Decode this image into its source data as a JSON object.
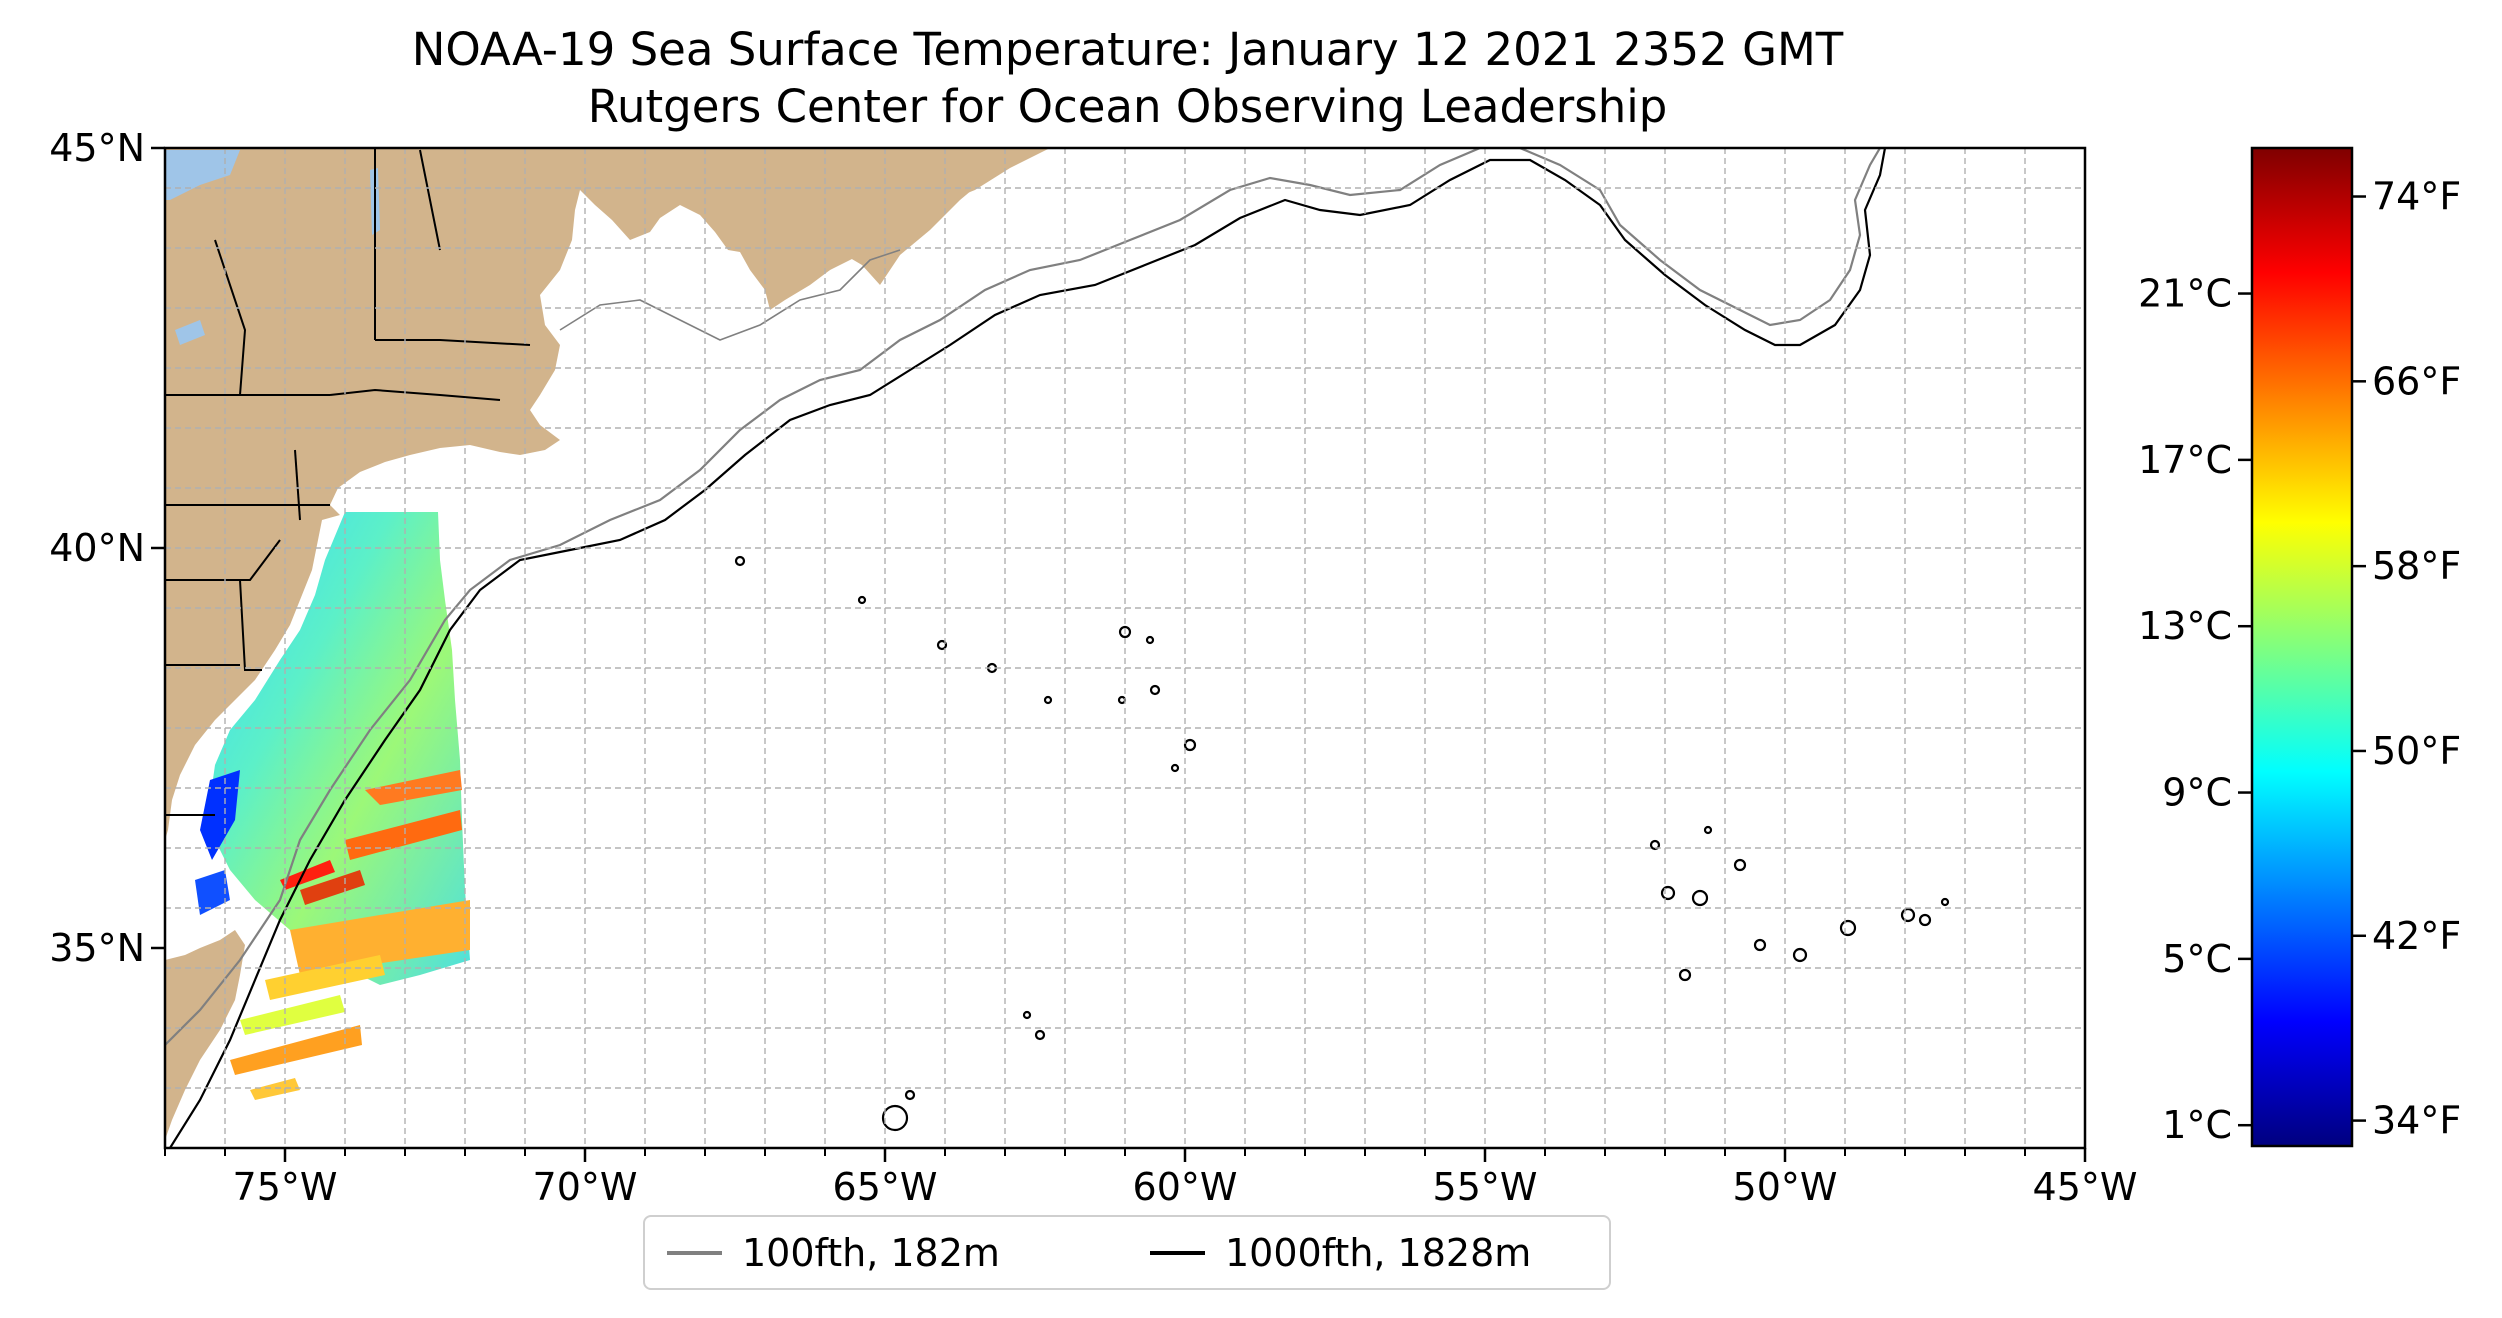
{
  "title": {
    "line1": "NOAA-19 Sea Surface Temperature: January 12 2021 2352 GMT",
    "line2": "Rutgers Center for Ocean Observing Leadership"
  },
  "map": {
    "lon_range": [
      -77,
      -45
    ],
    "lat_range": [
      32.5,
      45
    ],
    "x_ticks": [
      {
        "lon": -75,
        "label": "75°W"
      },
      {
        "lon": -70,
        "label": "70°W"
      },
      {
        "lon": -65,
        "label": "65°W"
      },
      {
        "lon": -60,
        "label": "60°W"
      },
      {
        "lon": -55,
        "label": "55°W"
      },
      {
        "lon": -50,
        "label": "50°W"
      },
      {
        "lon": -45,
        "label": "45°W"
      }
    ],
    "y_ticks": [
      {
        "lat": 45,
        "label": "45°N"
      },
      {
        "lat": 40,
        "label": "40°N"
      },
      {
        "lat": 35,
        "label": "35°N"
      }
    ],
    "grid": "dashed",
    "land_color": "#d2b48c",
    "lake_color": "#9fc5e8",
    "gridline_color": "#b0b0b0"
  },
  "colorbar": {
    "colormap": "jet",
    "range_celsius": [
      0.5,
      24.5
    ],
    "celsius_ticks": [
      {
        "value": 1,
        "label": "1°C"
      },
      {
        "value": 5,
        "label": "5°C"
      },
      {
        "value": 9,
        "label": "9°C"
      },
      {
        "value": 13,
        "label": "13°C"
      },
      {
        "value": 17,
        "label": "17°C"
      },
      {
        "value": 21,
        "label": "21°C"
      }
    ],
    "fahrenheit_ticks": [
      {
        "value": 34,
        "label": "34°F"
      },
      {
        "value": 42,
        "label": "42°F"
      },
      {
        "value": 50,
        "label": "50°F"
      },
      {
        "value": 58,
        "label": "58°F"
      },
      {
        "value": 66,
        "label": "66°F"
      },
      {
        "value": 74,
        "label": "74°F"
      }
    ]
  },
  "legend": {
    "items": [
      {
        "label": "100fth, 182m",
        "color": "#808080"
      },
      {
        "label": "1000fth, 1828m",
        "color": "#000000"
      }
    ]
  }
}
